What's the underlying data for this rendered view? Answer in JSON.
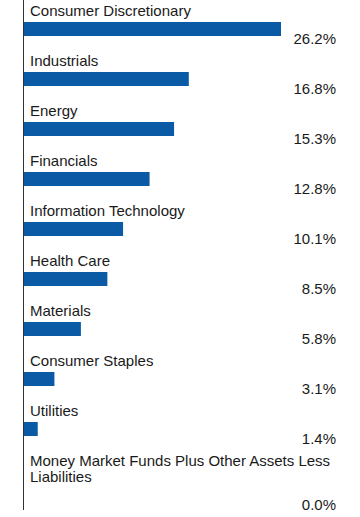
{
  "chart_data": {
    "type": "bar",
    "orientation": "horizontal",
    "categories": [
      "Consumer Discretionary",
      "Industrials",
      "Energy",
      "Financials",
      "Information Technology",
      "Health Care",
      "Materials",
      "Consumer Staples",
      "Utilities",
      "Money Market Funds Plus Other Assets Less Liabilities"
    ],
    "values": [
      26.2,
      16.8,
      15.3,
      12.8,
      10.1,
      8.5,
      5.8,
      3.1,
      1.4,
      0.0
    ],
    "value_labels": [
      "26.2%",
      "16.8%",
      "15.3%",
      "12.8%",
      "10.1%",
      "8.5%",
      "5.8%",
      "3.1%",
      "1.4%",
      "0.0%"
    ],
    "color": "#0b5aa6",
    "xlim": [
      0,
      26.2
    ],
    "data_labels": true,
    "tick_labels": false,
    "grid": false
  }
}
